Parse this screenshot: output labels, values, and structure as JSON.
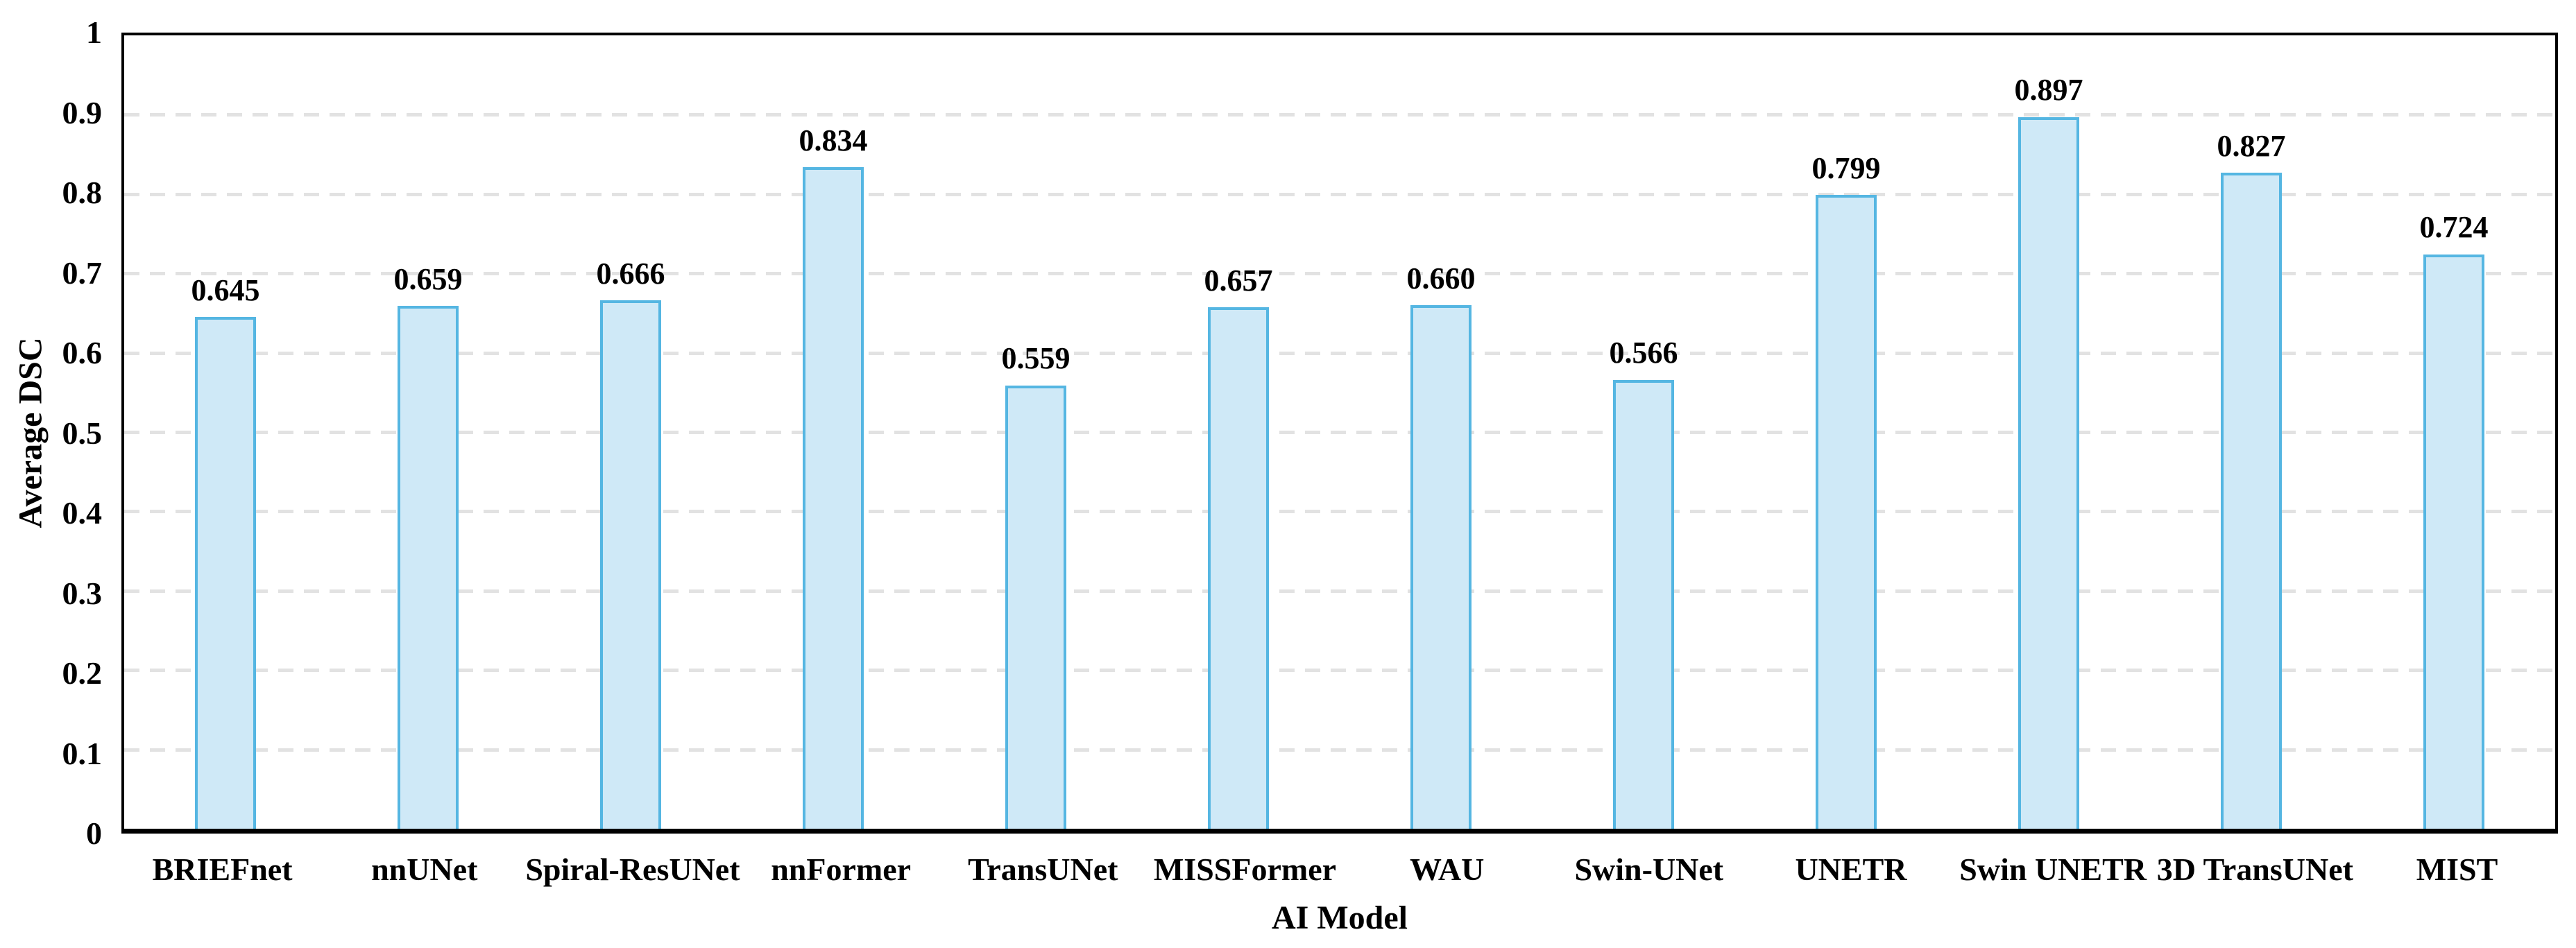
{
  "chart_data": {
    "type": "bar",
    "title": "",
    "xlabel": "AI Model",
    "ylabel": "Average DSC",
    "ylim": [
      0,
      1
    ],
    "grid": "horizontal-dashed",
    "legend": "none",
    "yticks": [
      {
        "value": 0,
        "label": "0"
      },
      {
        "value": 0.1,
        "label": "0.1"
      },
      {
        "value": 0.2,
        "label": "0.2"
      },
      {
        "value": 0.3,
        "label": "0.3"
      },
      {
        "value": 0.4,
        "label": "0.4"
      },
      {
        "value": 0.5,
        "label": "0.5"
      },
      {
        "value": 0.6,
        "label": "0.6"
      },
      {
        "value": 0.7,
        "label": "0.7"
      },
      {
        "value": 0.8,
        "label": "0.8"
      },
      {
        "value": 0.9,
        "label": "0.9"
      },
      {
        "value": 1,
        "label": "1"
      }
    ],
    "categories": [
      "BRIEFnet",
      "nnUNet",
      "Spiral-ResUNet",
      "nnFormer",
      "TransUNet",
      "MISSFormer",
      "WAU",
      "Swin-UNet",
      "UNETR",
      "Swin UNETR",
      "3D TransUNet",
      "MIST"
    ],
    "values": [
      0.645,
      0.659,
      0.666,
      0.834,
      0.559,
      0.657,
      0.66,
      0.566,
      0.799,
      0.897,
      0.827,
      0.724
    ],
    "value_labels": [
      "0.645",
      "0.659",
      "0.666",
      "0.834",
      "0.559",
      "0.657",
      "0.660",
      "0.566",
      "0.799",
      "0.897",
      "0.827",
      "0.724"
    ],
    "colors": {
      "bar_fill": "#cfe9f7",
      "bar_border": "#55b6e2",
      "gridline": "#e2e2e2",
      "axis": "#000000",
      "text": "#000000"
    }
  }
}
